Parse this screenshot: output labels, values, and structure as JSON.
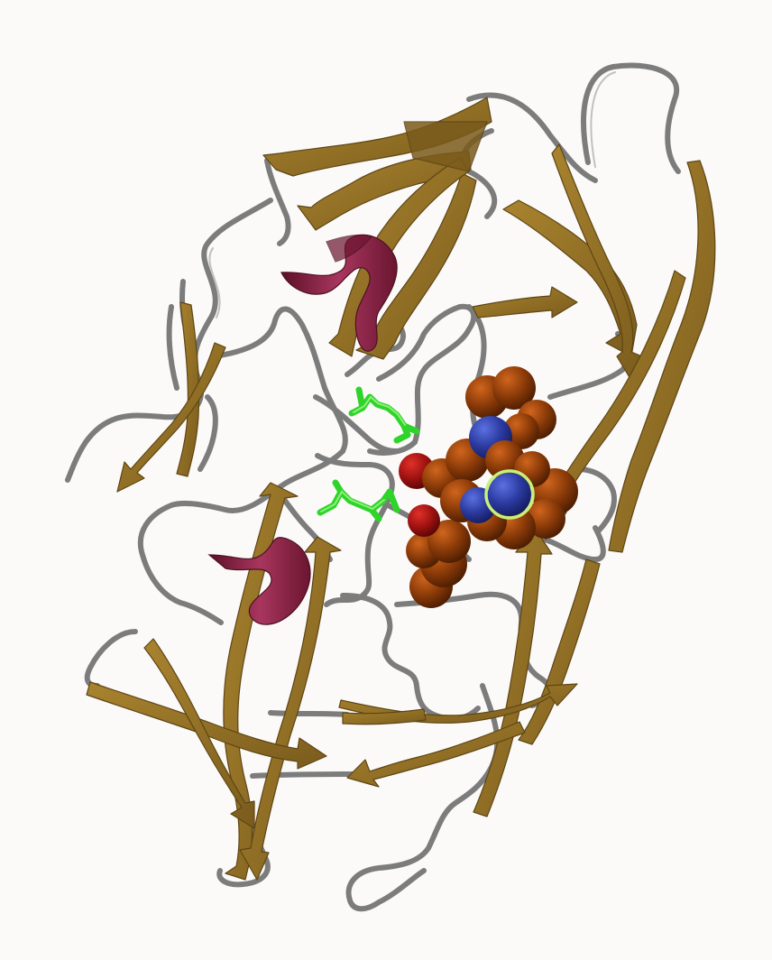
{
  "scene": {
    "background": "#fbfaf9",
    "representation": "cartoon",
    "colors": {
      "coil": "#7c7c7c",
      "strand": "#8a6a25",
      "strand_dark": "#6e521a",
      "helix": "#7e1f3f",
      "helix_light": "#a8365e",
      "residue_sticks": "#2fd42a",
      "ligand_carbon": "#8a3a08",
      "ligand_nitrogen": "#2b3aa0",
      "ligand_oxygen": "#9e1210",
      "selection_ring": "#c8f07a"
    },
    "icons": [
      "protein-cartoon",
      "space-filling-ligand",
      "residue-sticks",
      "selection-ring"
    ]
  }
}
